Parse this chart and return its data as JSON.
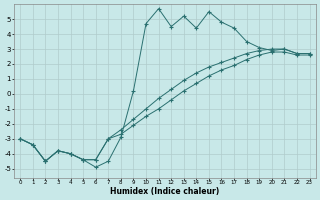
{
  "xlabel": "Humidex (Indice chaleur)",
  "background_color": "#c8e8e8",
  "grid_color": "#b0cccc",
  "line_color": "#2a7070",
  "xlim": [
    -0.5,
    23.5
  ],
  "ylim": [
    -5.6,
    6.0
  ],
  "xticks": [
    0,
    1,
    2,
    3,
    4,
    5,
    6,
    7,
    8,
    9,
    10,
    11,
    12,
    13,
    14,
    15,
    16,
    17,
    18,
    19,
    20,
    21,
    22,
    23
  ],
  "yticks": [
    -5,
    -4,
    -3,
    -2,
    -1,
    0,
    1,
    2,
    3,
    4,
    5
  ],
  "line1_x": [
    0,
    1,
    2,
    3,
    4,
    5,
    6,
    7,
    8,
    9,
    10,
    11,
    12,
    13,
    14,
    15,
    16,
    17,
    18,
    19,
    20,
    21,
    22,
    23
  ],
  "line1_y": [
    -3.0,
    -3.4,
    -4.5,
    -3.8,
    -4.0,
    -4.4,
    -4.9,
    -4.5,
    -2.9,
    0.2,
    4.7,
    5.7,
    4.5,
    5.2,
    4.4,
    5.5,
    4.8,
    4.4,
    3.5,
    3.1,
    2.9,
    3.0,
    2.7,
    2.7
  ],
  "line2_x": [
    0,
    1,
    2,
    3,
    4,
    5,
    6,
    7,
    8,
    9,
    10,
    11,
    12,
    13,
    14,
    15,
    16,
    17,
    18,
    19,
    20,
    21,
    22,
    23
  ],
  "line2_y": [
    -3.0,
    -3.4,
    -4.5,
    -3.8,
    -4.0,
    -4.4,
    -4.4,
    -3.0,
    -2.4,
    -1.7,
    -1.0,
    -0.3,
    0.3,
    0.9,
    1.4,
    1.8,
    2.1,
    2.4,
    2.7,
    2.9,
    3.0,
    3.0,
    2.7,
    2.7
  ],
  "line3_x": [
    0,
    1,
    2,
    3,
    4,
    5,
    6,
    7,
    8,
    9,
    10,
    11,
    12,
    13,
    14,
    15,
    16,
    17,
    18,
    19,
    20,
    21,
    22,
    23
  ],
  "line3_y": [
    -3.0,
    -3.4,
    -4.5,
    -3.8,
    -4.0,
    -4.4,
    -4.4,
    -3.0,
    -2.7,
    -2.1,
    -1.5,
    -1.0,
    -0.4,
    0.2,
    0.7,
    1.2,
    1.6,
    1.9,
    2.3,
    2.6,
    2.8,
    2.8,
    2.6,
    2.6
  ]
}
